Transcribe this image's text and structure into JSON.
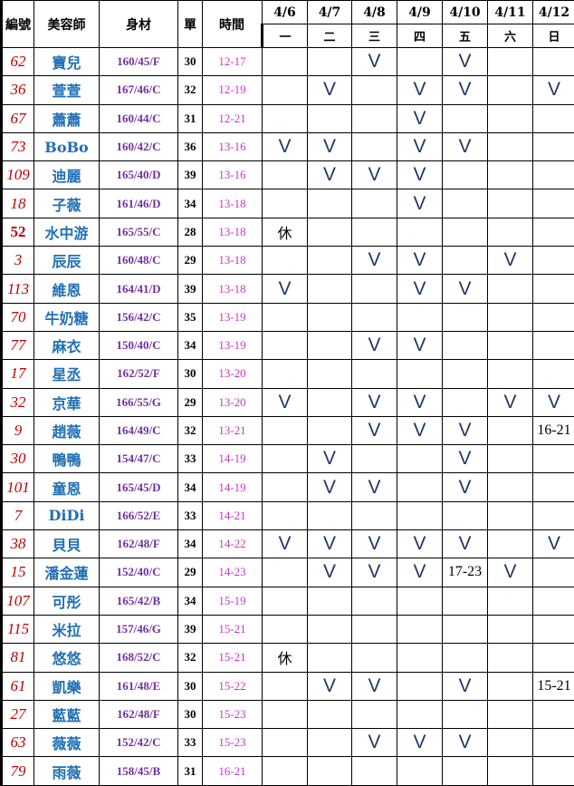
{
  "headers": {
    "id": "編號",
    "name": "美容師",
    "body": "身材",
    "count": "單",
    "time": "時間"
  },
  "dates": [
    "4/6",
    "4/7",
    "4/8",
    "4/9",
    "4/10",
    "4/11",
    "4/12"
  ],
  "weekdays": [
    "一",
    "二",
    "三",
    "四",
    "五",
    "六",
    "日"
  ],
  "colors": {
    "id": "#c00000",
    "name": "#1f6fb5",
    "body": "#7030a0",
    "time": "#cc33cc",
    "mark": "#1f3864"
  },
  "rows": [
    {
      "id": "62",
      "name": "寶兒",
      "body": "160/45/F",
      "count": "30",
      "time": "12-17",
      "days": [
        "",
        "",
        "V",
        "",
        "V",
        "",
        ""
      ]
    },
    {
      "id": "36",
      "name": "萱萱",
      "body": "167/46/C",
      "count": "32",
      "time": "12-19",
      "days": [
        "",
        "V",
        "",
        "V",
        "V",
        "",
        "V"
      ]
    },
    {
      "id": "67",
      "name": "蕭蕭",
      "body": "160/44/C",
      "count": "31",
      "time": "12-21",
      "days": [
        "",
        "",
        "",
        "V",
        "",
        "",
        ""
      ]
    },
    {
      "id": "73",
      "name": "BoBo",
      "body": "160/42/C",
      "count": "36",
      "time": "13-16",
      "days": [
        "V",
        "V",
        "",
        "V",
        "V",
        "",
        ""
      ]
    },
    {
      "id": "109",
      "name": "迪麗",
      "body": "165/40/D",
      "count": "39",
      "time": "13-16",
      "days": [
        "",
        "V",
        "V",
        "V",
        "",
        "",
        ""
      ]
    },
    {
      "id": "18",
      "name": "子薇",
      "body": "161/46/D",
      "count": "34",
      "time": "13-18",
      "days": [
        "",
        "",
        "",
        "V",
        "",
        "",
        ""
      ]
    },
    {
      "id": "52",
      "name": "水中游",
      "body": "165/55/C",
      "count": "28",
      "time": "13-18",
      "days": [
        "休",
        "",
        "",
        "",
        "",
        "",
        ""
      ]
    },
    {
      "id": "3",
      "name": "辰辰",
      "body": "160/48/C",
      "count": "29",
      "time": "13-18",
      "days": [
        "",
        "",
        "V",
        "V",
        "",
        "V",
        ""
      ]
    },
    {
      "id": "113",
      "name": "維恩",
      "body": "164/41/D",
      "count": "39",
      "time": "13-18",
      "days": [
        "V",
        "",
        "",
        "V",
        "V",
        "",
        ""
      ]
    },
    {
      "id": "70",
      "name": "牛奶糖",
      "body": "156/42/C",
      "count": "35",
      "time": "13-19",
      "days": [
        "",
        "",
        "",
        "",
        "",
        "",
        ""
      ]
    },
    {
      "id": "77",
      "name": "麻衣",
      "body": "150/40/C",
      "count": "34",
      "time": "13-19",
      "days": [
        "",
        "",
        "V",
        "V",
        "",
        "",
        ""
      ]
    },
    {
      "id": "17",
      "name": "星丞",
      "body": "162/52/F",
      "count": "30",
      "time": "13-20",
      "days": [
        "",
        "",
        "",
        "",
        "",
        "",
        ""
      ]
    },
    {
      "id": "32",
      "name": "京華",
      "body": "166/55/G",
      "count": "29",
      "time": "13-20",
      "days": [
        "V",
        "",
        "V",
        "V",
        "",
        "V",
        "V"
      ]
    },
    {
      "id": "9",
      "name": "趙薇",
      "body": "164/49/C",
      "count": "32",
      "time": "13-21",
      "days": [
        "",
        "",
        "V",
        "V",
        "V",
        "",
        "16-21"
      ]
    },
    {
      "id": "30",
      "name": "鴨鴨",
      "body": "154/47/C",
      "count": "33",
      "time": "14-19",
      "days": [
        "",
        "V",
        "",
        "",
        "V",
        "",
        ""
      ]
    },
    {
      "id": "101",
      "name": "童恩",
      "body": "165/45/D",
      "count": "34",
      "time": "14-19",
      "days": [
        "",
        "V",
        "V",
        "",
        "V",
        "",
        ""
      ]
    },
    {
      "id": "7",
      "name": "DiDi",
      "body": "166/52/E",
      "count": "33",
      "time": "14-21",
      "days": [
        "",
        "",
        "",
        "",
        "",
        "",
        ""
      ]
    },
    {
      "id": "38",
      "name": "貝貝",
      "body": "162/48/F",
      "count": "34",
      "time": "14-22",
      "days": [
        "V",
        "V",
        "V",
        "V",
        "V",
        "",
        "V"
      ]
    },
    {
      "id": "15",
      "name": "潘金蓮",
      "body": "152/40/C",
      "count": "29",
      "time": "14-23",
      "days": [
        "",
        "V",
        "V",
        "V",
        "17-23",
        "V",
        ""
      ]
    },
    {
      "id": "107",
      "name": "可彤",
      "body": "165/42/B",
      "count": "34",
      "time": "15-19",
      "days": [
        "",
        "",
        "",
        "",
        "",
        "",
        ""
      ]
    },
    {
      "id": "115",
      "name": "米拉",
      "body": "157/46/G",
      "count": "39",
      "time": "15-21",
      "days": [
        "",
        "",
        "",
        "",
        "",
        "",
        ""
      ]
    },
    {
      "id": "81",
      "name": "悠悠",
      "body": "168/52/C",
      "count": "32",
      "time": "15-21",
      "days": [
        "休",
        "",
        "",
        "",
        "",
        "",
        ""
      ]
    },
    {
      "id": "61",
      "name": "凱樂",
      "body": "161/48/E",
      "count": "30",
      "time": "15-22",
      "days": [
        "",
        "V",
        "V",
        "",
        "V",
        "",
        "15-21"
      ]
    },
    {
      "id": "27",
      "name": "藍藍",
      "body": "162/48/F",
      "count": "30",
      "time": "15-23",
      "days": [
        "",
        "",
        "",
        "",
        "",
        "",
        ""
      ]
    },
    {
      "id": "63",
      "name": "薇薇",
      "body": "152/42/C",
      "count": "33",
      "time": "15-23",
      "days": [
        "",
        "",
        "V",
        "V",
        "V",
        "",
        ""
      ]
    },
    {
      "id": "79",
      "name": "雨薇",
      "body": "158/45/B",
      "count": "31",
      "time": "16-21",
      "days": [
        "",
        "",
        "",
        "",
        "",
        "",
        ""
      ]
    }
  ]
}
